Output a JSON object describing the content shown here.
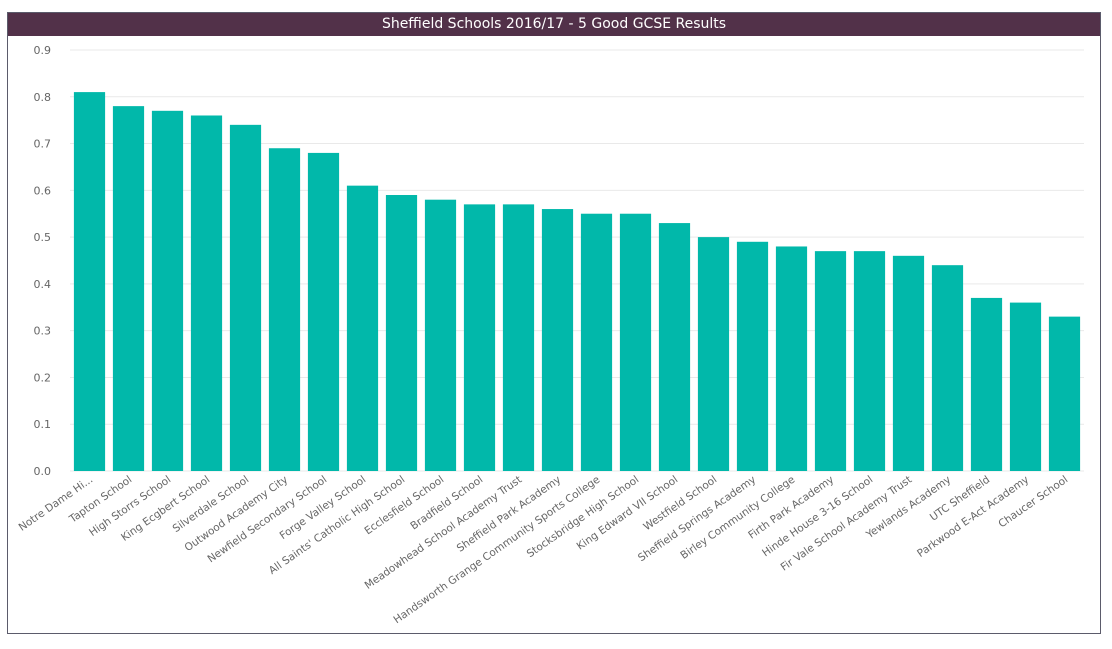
{
  "chart_data": {
    "type": "bar",
    "title": "Sheffield Schools 2016/17 - 5 Good GCSE Results",
    "xlabel": "",
    "ylabel": "",
    "ylim": [
      0,
      0.9
    ],
    "yticks": [
      "0.0",
      "0.1",
      "0.2",
      "0.3",
      "0.4",
      "0.5",
      "0.6",
      "0.7",
      "0.8",
      "0.9"
    ],
    "grid": true,
    "bar_color": "#01B8AA",
    "title_bg_color": "#523149",
    "categories": [
      "Notre Dame Hi...",
      "Tapton School",
      "High Storrs School",
      "King Ecgbert School",
      "Silverdale School",
      "Outwood Academy City",
      "Newfield Secondary School",
      "Forge Valley School",
      "All Saints' Catholic High School",
      "Ecclesfield School",
      "Bradfield School",
      "Meadowhead School Academy Trust",
      "Sheffield Park Academy",
      "Handsworth Grange Community Sports College",
      "Stocksbridge High School",
      "King Edward VII School",
      "Westfield School",
      "Sheffield Springs Academy",
      "Birley Community College",
      "Firth Park Academy",
      "Hinde House 3-16 School",
      "Fir Vale School Academy Trust",
      "Yewlands Academy",
      "UTC Sheffield",
      "Parkwood E-Act Academy",
      "Chaucer School"
    ],
    "values": [
      0.81,
      0.78,
      0.77,
      0.76,
      0.74,
      0.69,
      0.68,
      0.61,
      0.59,
      0.58,
      0.57,
      0.57,
      0.56,
      0.55,
      0.55,
      0.53,
      0.5,
      0.49,
      0.48,
      0.47,
      0.47,
      0.46,
      0.44,
      0.37,
      0.36,
      0.33
    ]
  }
}
